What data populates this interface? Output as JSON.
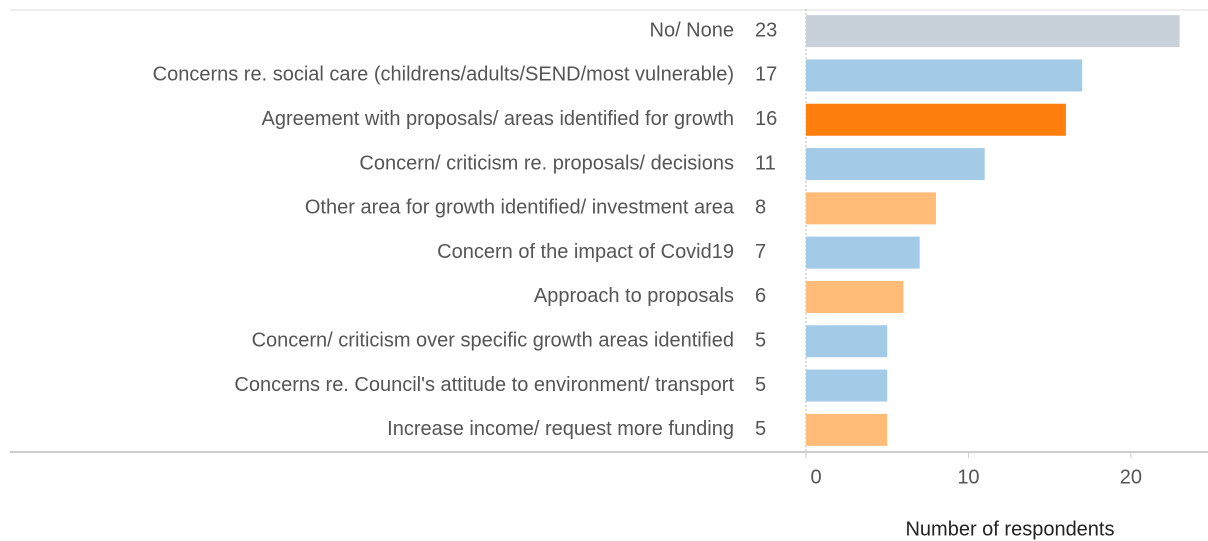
{
  "chart_data": {
    "type": "barh",
    "categories": [
      "No/ None",
      "Concerns re. social care (childrens/adults/SEND/most vulnerable)",
      "Agreement with proposals/ areas identified for growth",
      "Concern/ criticism re. proposals/ decisions",
      "Other area for growth identified/ investment area",
      "Concern of the impact of Covid19",
      "Approach to proposals",
      "Concern/ criticism over specific growth areas identified",
      "Concerns re. Council's attitude to environment/ transport",
      "Increase income/ request more funding"
    ],
    "values": [
      23,
      17,
      16,
      11,
      8,
      7,
      6,
      5,
      5,
      5
    ],
    "colors": [
      "#c8d0da",
      "#a3cbe8",
      "#ff7f0e",
      "#a3cbe8",
      "#ffbb78",
      "#a3cbe8",
      "#ffbb78",
      "#a3cbe8",
      "#a3cbe8",
      "#ffbb78"
    ],
    "xlabel": "Number of respondents",
    "xlim": [
      0,
      24.5
    ],
    "xticks": [
      0,
      10,
      20
    ]
  }
}
